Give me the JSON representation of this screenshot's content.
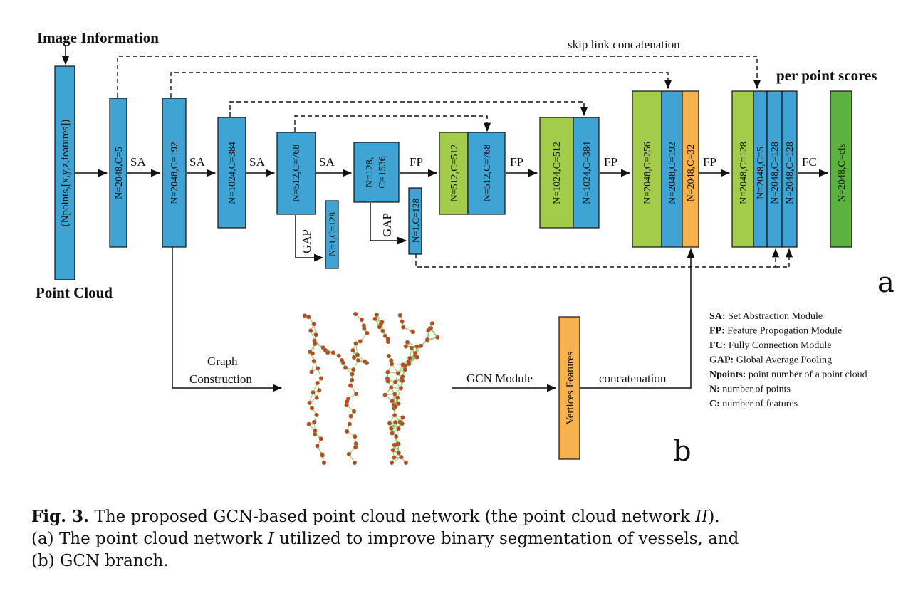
{
  "labels": {
    "image_info": "Image Information",
    "point_cloud": "Point Cloud",
    "skip_link": "skip link concatenation",
    "per_point": "per point scores",
    "panel_a": "a",
    "panel_b": "b",
    "graph_construction_1": "Graph",
    "graph_construction_2": "Construction",
    "gcn_module": "GCN Module",
    "concatenation": "concatenation"
  },
  "blocks": {
    "input": "(Npoints,[x,y,z,features])",
    "b1": "N=2048,C=5",
    "b2": "N=2048,C=192",
    "b3": "N=1024,C=384",
    "b4": "N=512,C=768",
    "gap1": "N=1,C=128",
    "b5a": "N=128,",
    "b5b": "C=1536",
    "gap2": "N=1,C=128",
    "fp1a": "N=512,C=512",
    "fp1b": "N=512,C=768",
    "fp2a": "N=1024,C=512",
    "fp2b": "N=1024,C=384",
    "fp3a": "N=2048,C=256",
    "fp3b": "N=2048,C=192",
    "fp3c": "N=2048,C=32",
    "fp4a": "N=2048,C=128",
    "fp4b": "N=2048,C=5",
    "fp4c": "N=2048,C=128",
    "fp4d": "N=2048,C=128",
    "out": "N=2048,C=cls",
    "vertices": "Vertices Features"
  },
  "ops": {
    "sa1": "SA",
    "sa2": "SA",
    "sa3": "SA",
    "sa4": "SA",
    "gap1": "GAP",
    "gap2": "GAP",
    "fp1": "FP",
    "fp2": "FP",
    "fp3": "FP",
    "fp4": "FP",
    "fc": "FC"
  },
  "legend": [
    {
      "key": "SA:",
      "text": "Set Abstraction Module"
    },
    {
      "key": "FP:",
      "text": "Feature Propogation Module"
    },
    {
      "key": "FC:",
      "text": "Fully Connection Module"
    },
    {
      "key": "GAP:",
      "text": "Global Average Pooling"
    },
    {
      "key": "Npoints:",
      "text": "point number of  a point cloud"
    },
    {
      "key": "N:",
      "text": "number of points"
    },
    {
      "key": "C:",
      "text": "number of features"
    }
  ],
  "caption": {
    "fig_label": "Fig. 3.",
    "line1": "The proposed GCN-based point cloud network (the point cloud network ",
    "line1_italic": "II",
    "line1_end": ").",
    "line2a": "(a) The point cloud network ",
    "line2_italic": "I",
    "line2b": " utilized to improve binary segmentation of vessels, and",
    "line3": "(b) GCN branch."
  },
  "colors": {
    "blue": "#3fa3d3",
    "green": "#a3cc4b",
    "orange": "#f6b24f",
    "dark_green": "#5cb23f",
    "node": "#c6402e",
    "edge": "#8ec35a"
  }
}
